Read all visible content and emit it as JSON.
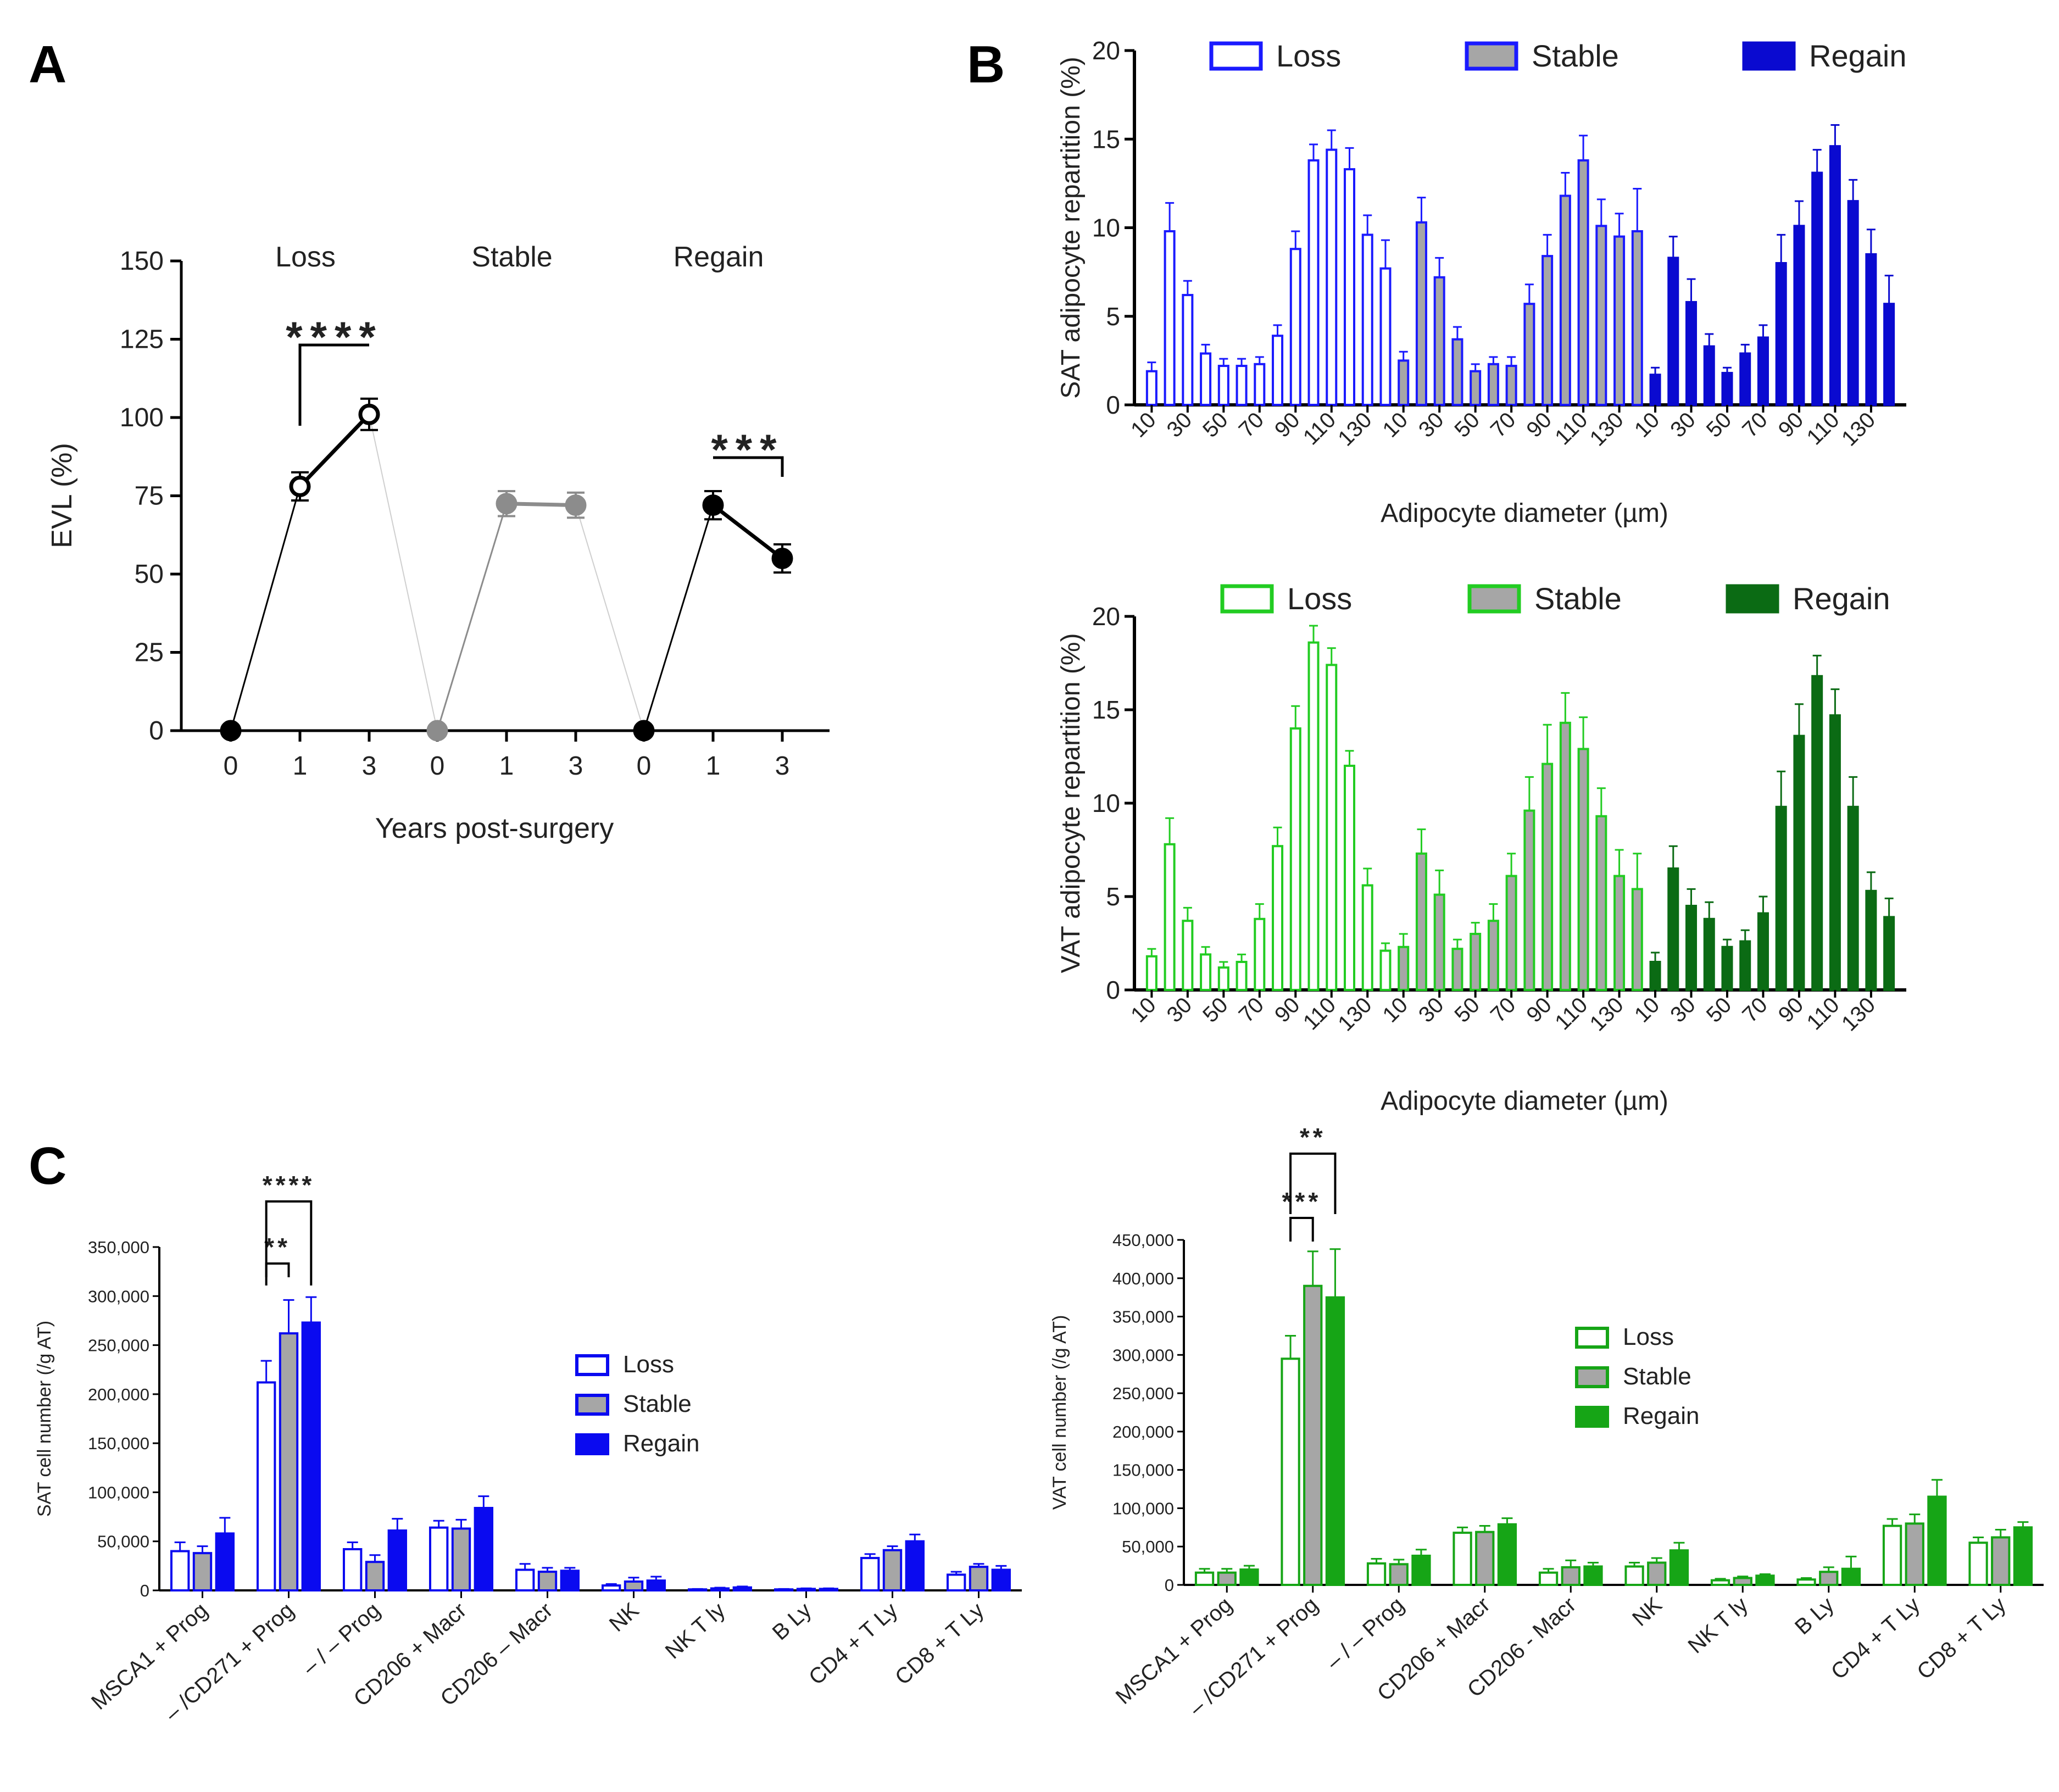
{
  "panels": {
    "a": "A",
    "b": "B",
    "c": "C"
  },
  "colors": {
    "sat_loss": "#1a1aff",
    "sat_stable_fill": "#a6a6a6",
    "sat_regain": "#0a0ad0",
    "vat_loss": "#22cc22",
    "vat_stable_fill": "#a6a6a6",
    "vat_regain": "#0b6b14",
    "c_sat": "#0a0af0",
    "c_vat": "#16a516",
    "a_black": "#000000",
    "a_gray": "#8c8c8c"
  },
  "chart_data": [
    {
      "id": "A",
      "type": "line",
      "ylabel": "EVL (%)",
      "xlabel": "Years post-surgery",
      "ylim": [
        0,
        150
      ],
      "yticks": [
        "0",
        "25",
        "50",
        "75",
        "100",
        "125",
        "150"
      ],
      "xticks": [
        "0",
        "1",
        "3",
        "0",
        "1",
        "3",
        "0",
        "1",
        "3"
      ],
      "groups": [
        {
          "name": "Loss",
          "color": "#000000",
          "points": [
            {
              "year": "0",
              "value": 0,
              "err": 0,
              "filled": true
            },
            {
              "year": "1",
              "value": 78,
              "err": 4.5,
              "filled": false
            },
            {
              "year": "3",
              "value": 101,
              "err": 5,
              "filled": false
            }
          ]
        },
        {
          "name": "Stable",
          "color": "#8c8c8c",
          "points": [
            {
              "year": "0",
              "value": 0,
              "err": 0,
              "filled": true
            },
            {
              "year": "1",
              "value": 72.5,
              "err": 4,
              "filled": true
            },
            {
              "year": "3",
              "value": 72,
              "err": 4,
              "filled": true
            }
          ]
        },
        {
          "name": "Regain",
          "color": "#000000",
          "points": [
            {
              "year": "0",
              "value": 0,
              "err": 0,
              "filled": true
            },
            {
              "year": "1",
              "value": 72,
              "err": 4.5,
              "filled": true
            },
            {
              "year": "3",
              "value": 55,
              "err": 4.5,
              "filled": true
            }
          ]
        }
      ],
      "significance": [
        {
          "group": "Loss",
          "from": "1",
          "to": "3",
          "label": "****"
        },
        {
          "group": "Regain",
          "from": "1",
          "to": "3",
          "label": "***"
        }
      ]
    },
    {
      "id": "B-SAT",
      "type": "bar",
      "ylabel": "SAT adipocyte repartition (%)",
      "xlabel": "Adipocyte diameter (µm)",
      "ylim": [
        0,
        20
      ],
      "yticks": [
        "0",
        "5",
        "10",
        "15",
        "20"
      ],
      "categories": [
        "10",
        "20",
        "30",
        "40",
        "50",
        "60",
        "70",
        "80",
        "90",
        "100",
        "110",
        "120",
        "130",
        "140"
      ],
      "tick_labels": [
        "10",
        "30",
        "50",
        "70",
        "90",
        "110",
        "130"
      ],
      "series": [
        {
          "name": "Loss",
          "style": "open",
          "values": [
            1.9,
            9.8,
            6.2,
            2.9,
            2.2,
            2.2,
            2.3,
            3.9,
            8.8,
            13.8,
            14.4,
            13.3,
            9.6,
            7.7
          ],
          "errors": [
            0.5,
            1.6,
            0.8,
            0.5,
            0.4,
            0.4,
            0.4,
            0.6,
            1.0,
            0.9,
            1.1,
            1.2,
            1.1,
            1.6
          ]
        },
        {
          "name": "Stable",
          "style": "gray",
          "values": [
            2.5,
            10.3,
            7.2,
            3.7,
            1.9,
            2.3,
            2.2,
            5.7,
            8.4,
            11.8,
            13.8,
            10.1,
            9.5,
            9.8
          ],
          "errors": [
            0.5,
            1.4,
            1.1,
            0.7,
            0.4,
            0.4,
            0.5,
            1.1,
            1.2,
            1.3,
            1.4,
            1.5,
            1.3,
            2.4
          ]
        },
        {
          "name": "Regain",
          "style": "solid",
          "values": [
            1.7,
            8.3,
            5.8,
            3.3,
            1.8,
            2.9,
            3.8,
            8.0,
            10.1,
            13.1,
            14.6,
            11.5,
            8.5,
            5.7
          ],
          "errors": [
            0.4,
            1.2,
            1.3,
            0.7,
            0.3,
            0.5,
            0.7,
            1.6,
            1.4,
            1.3,
            1.2,
            1.2,
            1.4,
            1.6
          ]
        }
      ]
    },
    {
      "id": "B-VAT",
      "type": "bar",
      "ylabel": "VAT adipocyte repartition (%)",
      "xlabel": "Adipocyte diameter (µm)",
      "ylim": [
        0,
        20
      ],
      "yticks": [
        "0",
        "5",
        "10",
        "15",
        "20"
      ],
      "categories": [
        "10",
        "20",
        "30",
        "40",
        "50",
        "60",
        "70",
        "80",
        "90",
        "100",
        "110",
        "120",
        "130",
        "140"
      ],
      "tick_labels": [
        "10",
        "30",
        "50",
        "70",
        "90",
        "110",
        "130"
      ],
      "series": [
        {
          "name": "Loss",
          "style": "open",
          "values": [
            1.8,
            7.8,
            3.7,
            1.9,
            1.2,
            1.5,
            3.8,
            7.7,
            14.0,
            18.6,
            17.4,
            12.0,
            5.6,
            2.1
          ],
          "errors": [
            0.4,
            1.4,
            0.7,
            0.4,
            0.3,
            0.4,
            0.8,
            1.0,
            1.2,
            0.9,
            0.9,
            0.8,
            0.9,
            0.4
          ]
        },
        {
          "name": "Stable",
          "style": "gray",
          "values": [
            2.3,
            7.3,
            5.1,
            2.2,
            3.0,
            3.7,
            6.1,
            9.6,
            12.1,
            14.3,
            12.9,
            9.3,
            6.1,
            5.4
          ],
          "errors": [
            0.7,
            1.3,
            1.3,
            0.5,
            0.6,
            0.9,
            1.2,
            1.8,
            2.1,
            1.6,
            1.7,
            1.5,
            1.4,
            1.9
          ]
        },
        {
          "name": "Regain",
          "style": "solid",
          "values": [
            1.5,
            6.5,
            4.5,
            3.8,
            2.3,
            2.6,
            4.1,
            9.8,
            13.6,
            16.8,
            14.7,
            9.8,
            5.3,
            3.9
          ],
          "errors": [
            0.5,
            1.2,
            0.9,
            0.9,
            0.4,
            0.6,
            0.9,
            1.9,
            1.7,
            1.1,
            1.4,
            1.6,
            1.0,
            1.0
          ]
        }
      ]
    },
    {
      "id": "C-SAT",
      "type": "bar",
      "ylabel": "SAT cell number (/g AT)",
      "ylim": [
        0,
        350000
      ],
      "yticks": [
        "0",
        "50,000",
        "100,000",
        "150,000",
        "200,000",
        "250,000",
        "300,000",
        "350,000"
      ],
      "categories": [
        "MSCA1 + Prog",
        "– /CD271 + Prog",
        "– / – Prog",
        "CD206 + Macr",
        "CD206 – Macr",
        "NK",
        "NK T ly",
        "B Ly",
        "CD4 + T Ly",
        "CD8 + T Ly"
      ],
      "series": [
        {
          "name": "Loss",
          "style": "open",
          "values": [
            40000,
            212000,
            42000,
            64000,
            21000,
            5000,
            1000,
            1000,
            33000,
            16000
          ],
          "errors": [
            9000,
            22000,
            7000,
            7000,
            6000,
            1500,
            500,
            500,
            4000,
            3000
          ]
        },
        {
          "name": "Stable",
          "style": "gray",
          "values": [
            38000,
            262000,
            29000,
            63000,
            19000,
            9000,
            2000,
            1500,
            41000,
            24000
          ],
          "errors": [
            7000,
            34000,
            7000,
            9000,
            4000,
            4000,
            800,
            600,
            4000,
            3000
          ]
        },
        {
          "name": "Regain",
          "style": "solid",
          "values": [
            58000,
            273000,
            61000,
            84000,
            20000,
            10000,
            3000,
            1500,
            50000,
            21000
          ],
          "errors": [
            16000,
            26000,
            12000,
            12000,
            3000,
            4000,
            1000,
            600,
            7000,
            4000
          ]
        }
      ],
      "significance": [
        {
          "category": "– /CD271 + Prog",
          "from": "Loss",
          "to": "Stable",
          "label": "**"
        },
        {
          "category": "– /CD271 + Prog",
          "from": "Loss",
          "to": "Regain",
          "label": "****"
        }
      ]
    },
    {
      "id": "C-VAT",
      "type": "bar",
      "ylabel": "VAT cell number (/g AT)",
      "ylim": [
        0,
        450000
      ],
      "yticks": [
        "0",
        "50,000",
        "100,000",
        "150,000",
        "200,000",
        "250,000",
        "300,000",
        "350,000",
        "400,000",
        "450,000"
      ],
      "categories": [
        "MSCA1 + Prog",
        "– /CD271 + Prog",
        "– / – Prog",
        "CD206 + Macr",
        "CD206 - Macr",
        "NK",
        "NK T ly",
        "B Ly",
        "CD4 + T Ly",
        "CD8 + T Ly"
      ],
      "series": [
        {
          "name": "Loss",
          "style": "open",
          "values": [
            16000,
            295000,
            28000,
            68000,
            16000,
            24000,
            6000,
            7000,
            77000,
            55000
          ],
          "errors": [
            5000,
            30000,
            6000,
            7000,
            5000,
            5000,
            2000,
            2000,
            9000,
            7000
          ]
        },
        {
          "name": "Stable",
          "style": "gray",
          "values": [
            16000,
            390000,
            27000,
            69000,
            23000,
            29000,
            9000,
            17000,
            80000,
            62000
          ],
          "errors": [
            5000,
            45000,
            6000,
            8000,
            9000,
            6000,
            2000,
            6000,
            12000,
            10000
          ]
        },
        {
          "name": "Regain",
          "style": "solid",
          "values": [
            20000,
            375000,
            38000,
            79000,
            24000,
            45000,
            12000,
            21000,
            115000,
            75000
          ],
          "errors": [
            5000,
            63000,
            8000,
            8000,
            5000,
            10000,
            2000,
            16000,
            22000,
            7000
          ]
        }
      ],
      "significance": [
        {
          "category": "– /CD271 + Prog",
          "from": "Loss",
          "to": "Stable",
          "label": "***"
        },
        {
          "category": "– /CD271 + Prog",
          "from": "Loss",
          "to": "Regain",
          "label": "**"
        }
      ]
    }
  ]
}
